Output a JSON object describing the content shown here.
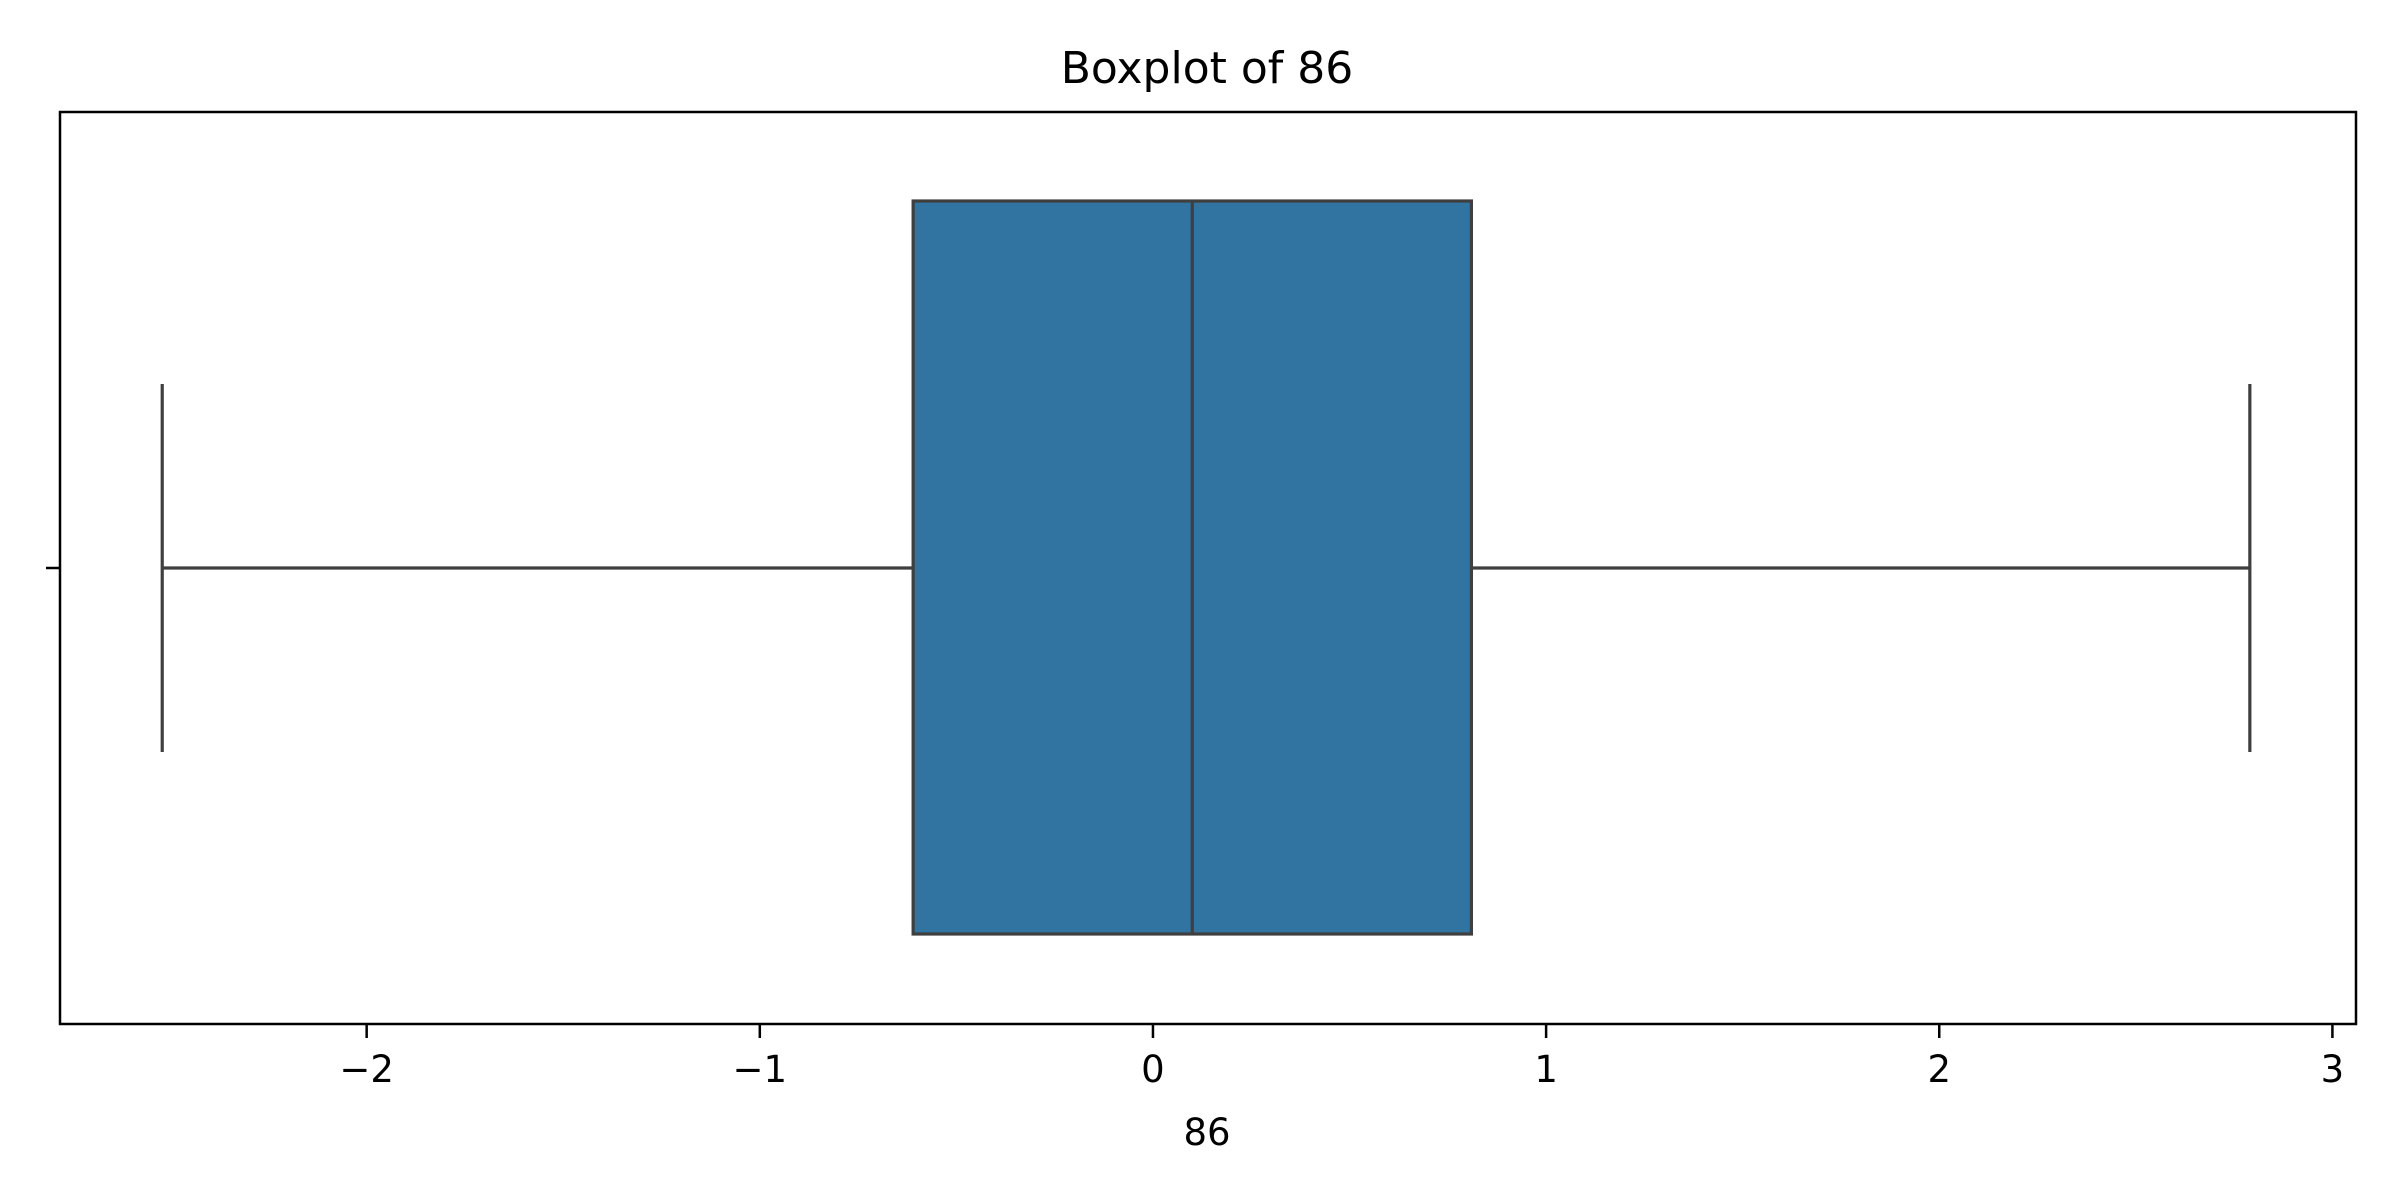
{
  "chart_data": {
    "type": "box",
    "title": "Boxplot of 86",
    "xlabel": "86",
    "ylabel": "",
    "xlim": [
      -2.78,
      3.06
    ],
    "xticks": [
      -2,
      -1,
      0,
      1,
      2,
      3
    ],
    "xtick_labels": [
      "−2",
      "−1",
      "0",
      "1",
      "2",
      "3"
    ],
    "grid": false,
    "orientation": "horizontal",
    "box": {
      "whisker_low": -2.52,
      "q1": -0.61,
      "median": 0.1,
      "q3": 0.81,
      "whisker_high": 2.79
    },
    "colors": {
      "box_fill": "#3274a1",
      "box_edge": "#3f3f3f",
      "axes": "#000000",
      "background": "#ffffff"
    }
  }
}
